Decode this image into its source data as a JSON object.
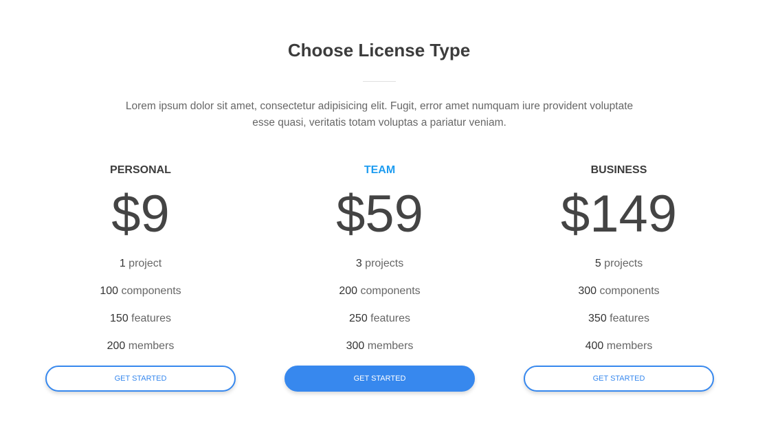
{
  "header": {
    "title": "Choose License Type",
    "description": "Lorem ipsum dolor sit amet, consectetur adipisicing elit. Fugit, error amet numquam iure provident voluptate esse quasi, veritatis totam voluptas a pariatur veniam."
  },
  "colors": {
    "accent": "#1e9cf0",
    "button": "#3788ee",
    "text": "#3c3c3c"
  },
  "plans": [
    {
      "name": "PERSONAL",
      "price": "$9",
      "features": [
        {
          "num": "1",
          "label": " project"
        },
        {
          "num": "100",
          "label": " components"
        },
        {
          "num": "150",
          "label": " features"
        },
        {
          "num": "200",
          "label": " members"
        }
      ],
      "button": "GET STARTED",
      "highlighted": false
    },
    {
      "name": "TEAM",
      "price": "$59",
      "features": [
        {
          "num": "3",
          "label": " projects"
        },
        {
          "num": "200",
          "label": " components"
        },
        {
          "num": "250",
          "label": " features"
        },
        {
          "num": "300",
          "label": " members"
        }
      ],
      "button": "GET STARTED",
      "highlighted": true
    },
    {
      "name": "BUSINESS",
      "price": "$149",
      "features": [
        {
          "num": "5",
          "label": " projects"
        },
        {
          "num": "300",
          "label": " components"
        },
        {
          "num": "350",
          "label": " features"
        },
        {
          "num": "400",
          "label": " members"
        }
      ],
      "button": "GET STARTED",
      "highlighted": false
    }
  ]
}
